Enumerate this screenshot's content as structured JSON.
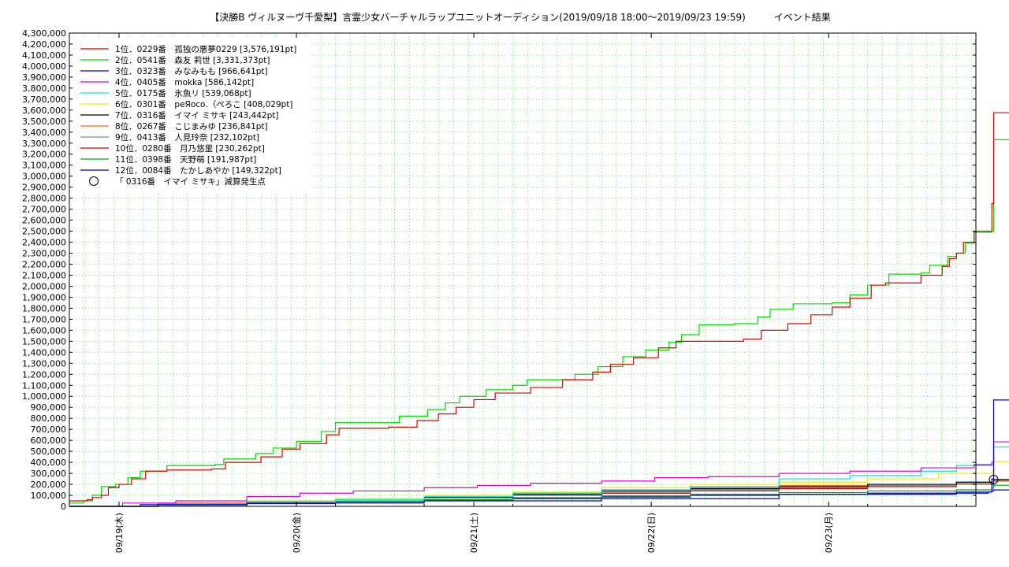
{
  "chart_data": {
    "type": "line",
    "title": "【決勝B ヴィルヌーヴ千愛梨】言霊少女バーチャルラップユニットオーディション(2019/09/18 18:00～2019/09/23 19:59)　　　イベント結果",
    "xlabel": "",
    "ylabel": "",
    "ylim": [
      0,
      4300000
    ],
    "xlim": [
      0,
      5.11
    ],
    "ytick_step": 100000,
    "x_ticks": [
      {
        "x": 0.28,
        "label": "09/19(木)"
      },
      {
        "x": 1.28,
        "label": "09/20(金)"
      },
      {
        "x": 2.28,
        "label": "09/21(土)"
      },
      {
        "x": 3.28,
        "label": "09/22(日)"
      },
      {
        "x": 4.28,
        "label": "09/23(月)"
      }
    ],
    "grid": true,
    "legend_position": "top-left",
    "series": [
      {
        "name": "1位．0229番　孤独の悪夢0229 [3,576,191pt]",
        "color": "#e00000",
        "points": [
          [
            0,
            50000
          ],
          [
            0.1,
            60000
          ],
          [
            0.13,
            80000
          ],
          [
            0.18,
            100000
          ],
          [
            0.22,
            170000
          ],
          [
            0.28,
            200000
          ],
          [
            0.35,
            250000
          ],
          [
            0.43,
            320000
          ],
          [
            0.55,
            330000
          ],
          [
            0.8,
            340000
          ],
          [
            0.88,
            400000
          ],
          [
            1.08,
            450000
          ],
          [
            1.2,
            520000
          ],
          [
            1.3,
            570000
          ],
          [
            1.45,
            650000
          ],
          [
            1.52,
            710000
          ],
          [
            1.8,
            720000
          ],
          [
            1.96,
            780000
          ],
          [
            2.08,
            840000
          ],
          [
            2.18,
            900000
          ],
          [
            2.28,
            970000
          ],
          [
            2.4,
            1030000
          ],
          [
            2.6,
            1080000
          ],
          [
            2.78,
            1150000
          ],
          [
            2.95,
            1220000
          ],
          [
            3.05,
            1290000
          ],
          [
            3.18,
            1350000
          ],
          [
            3.32,
            1440000
          ],
          [
            3.42,
            1500000
          ],
          [
            3.8,
            1520000
          ],
          [
            3.9,
            1600000
          ],
          [
            4.05,
            1660000
          ],
          [
            4.18,
            1740000
          ],
          [
            4.3,
            1810000
          ],
          [
            4.4,
            1890000
          ],
          [
            4.52,
            2010000
          ],
          [
            4.6,
            2030000
          ],
          [
            4.8,
            2100000
          ],
          [
            4.92,
            2180000
          ],
          [
            4.96,
            2250000
          ],
          [
            5.0,
            2300000
          ],
          [
            5.04,
            2400000
          ],
          [
            5.1,
            2500000
          ],
          [
            5.18,
            2500000
          ],
          [
            5.2,
            2750000
          ],
          [
            5.21,
            3576191
          ],
          [
            5.32,
            3576191
          ]
        ]
      },
      {
        "name": "2位．0541番　森友 莉世 [3,331,373pt]",
        "color": "#00dd00",
        "points": [
          [
            0,
            30000
          ],
          [
            0.08,
            50000
          ],
          [
            0.13,
            100000
          ],
          [
            0.18,
            180000
          ],
          [
            0.26,
            200000
          ],
          [
            0.33,
            260000
          ],
          [
            0.4,
            320000
          ],
          [
            0.55,
            370000
          ],
          [
            0.82,
            380000
          ],
          [
            0.87,
            430000
          ],
          [
            1.05,
            480000
          ],
          [
            1.15,
            530000
          ],
          [
            1.28,
            590000
          ],
          [
            1.42,
            680000
          ],
          [
            1.5,
            760000
          ],
          [
            1.72,
            760000
          ],
          [
            1.86,
            820000
          ],
          [
            2.02,
            880000
          ],
          [
            2.12,
            940000
          ],
          [
            2.2,
            1000000
          ],
          [
            2.35,
            1060000
          ],
          [
            2.5,
            1100000
          ],
          [
            2.58,
            1150000
          ],
          [
            2.85,
            1200000
          ],
          [
            2.98,
            1270000
          ],
          [
            3.12,
            1360000
          ],
          [
            3.25,
            1420000
          ],
          [
            3.38,
            1490000
          ],
          [
            3.45,
            1560000
          ],
          [
            3.55,
            1650000
          ],
          [
            3.75,
            1660000
          ],
          [
            3.88,
            1720000
          ],
          [
            3.95,
            1790000
          ],
          [
            4.08,
            1840000
          ],
          [
            4.3,
            1850000
          ],
          [
            4.4,
            1920000
          ],
          [
            4.5,
            2010000
          ],
          [
            4.62,
            2110000
          ],
          [
            4.8,
            2120000
          ],
          [
            4.85,
            2190000
          ],
          [
            4.95,
            2270000
          ],
          [
            5.0,
            2300000
          ],
          [
            5.05,
            2390000
          ],
          [
            5.1,
            2490000
          ],
          [
            5.2,
            2500000
          ],
          [
            5.21,
            3331373
          ],
          [
            5.32,
            3331373
          ]
        ]
      },
      {
        "name": "3位．0323番　みなみもも [966,641pt]",
        "color": "#0000dd",
        "points": [
          [
            0,
            0
          ],
          [
            0.4,
            15000
          ],
          [
            1,
            30000
          ],
          [
            2,
            50000
          ],
          [
            3,
            70000
          ],
          [
            4,
            110000
          ],
          [
            5,
            120000
          ],
          [
            5.18,
            130000
          ],
          [
            5.2,
            200000
          ],
          [
            5.21,
            966641
          ],
          [
            5.32,
            966641
          ]
        ]
      },
      {
        "name": "4位．0405番　mokka [586,142pt]",
        "color": "#dd00dd",
        "points": [
          [
            0,
            0
          ],
          [
            0.3,
            30000
          ],
          [
            0.6,
            50000
          ],
          [
            1,
            90000
          ],
          [
            1.3,
            120000
          ],
          [
            1.6,
            140000
          ],
          [
            2,
            170000
          ],
          [
            2.3,
            190000
          ],
          [
            2.6,
            210000
          ],
          [
            3,
            230000
          ],
          [
            3.3,
            260000
          ],
          [
            3.6,
            270000
          ],
          [
            4,
            300000
          ],
          [
            4.4,
            320000
          ],
          [
            4.8,
            350000
          ],
          [
            5.1,
            380000
          ],
          [
            5.2,
            400000
          ],
          [
            5.21,
            586142
          ],
          [
            5.32,
            586142
          ]
        ]
      },
      {
        "name": "5位．0175番　氷魚リ [539,068pt]",
        "color": "#00e5ee",
        "points": [
          [
            0,
            0
          ],
          [
            0.5,
            20000
          ],
          [
            1,
            40000
          ],
          [
            1.5,
            60000
          ],
          [
            2,
            90000
          ],
          [
            2.5,
            120000
          ],
          [
            3,
            150000
          ],
          [
            3.5,
            180000
          ],
          [
            4,
            250000
          ],
          [
            4.4,
            280000
          ],
          [
            4.8,
            320000
          ],
          [
            5.0,
            370000
          ],
          [
            5.2,
            380000
          ],
          [
            5.21,
            539068
          ],
          [
            5.32,
            539068
          ]
        ]
      },
      {
        "name": "6位．0301番　реЯосо.（ぺろこ [408,029pt]",
        "color": "#eeee00",
        "points": [
          [
            0,
            0
          ],
          [
            0.5,
            20000
          ],
          [
            1,
            50000
          ],
          [
            1.5,
            70000
          ],
          [
            2,
            100000
          ],
          [
            2.5,
            130000
          ],
          [
            3,
            170000
          ],
          [
            3.5,
            200000
          ],
          [
            4,
            220000
          ],
          [
            4.5,
            250000
          ],
          [
            4.9,
            300000
          ],
          [
            5.2,
            320000
          ],
          [
            5.21,
            408029
          ],
          [
            5.32,
            408029
          ]
        ]
      },
      {
        "name": "7位．0316番　イマイ ミサキ [243,442pt]",
        "color": "#000000",
        "points": [
          [
            0,
            0
          ],
          [
            0.5,
            20000
          ],
          [
            1,
            40000
          ],
          [
            1.5,
            60000
          ],
          [
            2,
            80000
          ],
          [
            2.5,
            110000
          ],
          [
            3,
            140000
          ],
          [
            3.5,
            160000
          ],
          [
            4,
            180000
          ],
          [
            4.5,
            200000
          ],
          [
            5.0,
            220000
          ],
          [
            5.2,
            250000
          ],
          [
            5.21,
            243442
          ],
          [
            5.32,
            243442
          ]
        ]
      },
      {
        "name": "8位．0267番　こじまみゆ [236,841pt]",
        "color": "#ff6600",
        "points": [
          [
            0,
            0
          ],
          [
            0.5,
            30000
          ],
          [
            1,
            50000
          ],
          [
            1.5,
            70000
          ],
          [
            2,
            90000
          ],
          [
            2.5,
            120000
          ],
          [
            3,
            150000
          ],
          [
            3.5,
            170000
          ],
          [
            4,
            190000
          ],
          [
            4.5,
            200000
          ],
          [
            5.0,
            210000
          ],
          [
            5.2,
            220000
          ],
          [
            5.21,
            236841
          ],
          [
            5.32,
            236841
          ]
        ]
      },
      {
        "name": "9位．0413番　人見玲奈 [232,102pt]",
        "color": "#888888",
        "points": [
          [
            0,
            0
          ],
          [
            0.5,
            25000
          ],
          [
            1,
            45000
          ],
          [
            1.5,
            60000
          ],
          [
            2,
            80000
          ],
          [
            2.5,
            100000
          ],
          [
            3,
            130000
          ],
          [
            3.5,
            150000
          ],
          [
            4,
            170000
          ],
          [
            4.5,
            190000
          ],
          [
            5.0,
            200000
          ],
          [
            5.2,
            215000
          ],
          [
            5.21,
            232102
          ],
          [
            5.32,
            232102
          ]
        ]
      },
      {
        "name": "10位．0280番　月乃悠里 [230,262pt]",
        "color": "#cc0000",
        "points": [
          [
            0,
            0
          ],
          [
            0.5,
            20000
          ],
          [
            1,
            40000
          ],
          [
            1.5,
            60000
          ],
          [
            2,
            80000
          ],
          [
            2.5,
            100000
          ],
          [
            3,
            120000
          ],
          [
            3.5,
            140000
          ],
          [
            4,
            160000
          ],
          [
            4.5,
            180000
          ],
          [
            5.0,
            200000
          ],
          [
            5.2,
            210000
          ],
          [
            5.21,
            230262
          ],
          [
            5.32,
            230262
          ]
        ]
      },
      {
        "name": "11位．0398番　天野萌 [191,987pt]",
        "color": "#00aa00",
        "points": [
          [
            0,
            0
          ],
          [
            0.5,
            15000
          ],
          [
            1,
            30000
          ],
          [
            1.5,
            45000
          ],
          [
            2,
            60000
          ],
          [
            2.5,
            80000
          ],
          [
            3,
            95000
          ],
          [
            3.5,
            110000
          ],
          [
            4,
            125000
          ],
          [
            4.5,
            140000
          ],
          [
            5.0,
            150000
          ],
          [
            5.2,
            165000
          ],
          [
            5.21,
            191987
          ],
          [
            5.32,
            191987
          ]
        ]
      },
      {
        "name": "12位．0084番　たかしあやか [149,322pt]",
        "color": "#0000aa",
        "points": [
          [
            0,
            0
          ],
          [
            0.5,
            12000
          ],
          [
            1,
            25000
          ],
          [
            1.5,
            40000
          ],
          [
            2,
            55000
          ],
          [
            2.5,
            70000
          ],
          [
            3,
            85000
          ],
          [
            3.5,
            100000
          ],
          [
            4,
            110000
          ],
          [
            4.5,
            120000
          ],
          [
            5.0,
            130000
          ],
          [
            5.2,
            140000
          ],
          [
            5.21,
            149322
          ],
          [
            5.32,
            149322
          ]
        ]
      }
    ],
    "annotations": [
      {
        "label": "「 0316番　イマイ ミサキ」減算発生点",
        "marker": "circle",
        "x": 5.21,
        "y": 243442
      }
    ]
  }
}
